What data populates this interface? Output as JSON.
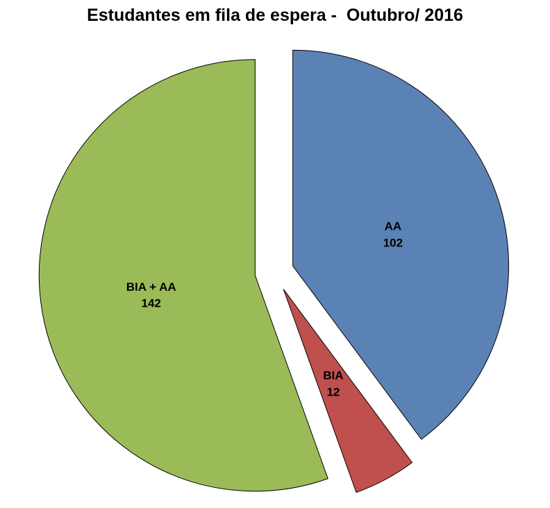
{
  "chart_data": {
    "type": "pie",
    "title": "Estudantes em fila de espera -  Outubro/ 2016",
    "slices": [
      {
        "label": "AA",
        "value": 102,
        "color": "#5B82B5"
      },
      {
        "label": "BIA",
        "value": 12,
        "color": "#C0504D"
      },
      {
        "label": "BIA + AA",
        "value": 142,
        "color": "#9BBB59"
      }
    ],
    "start_angle_deg": 0,
    "direction": "clockwise",
    "exploded": true,
    "outline_color": "#000000",
    "label_color": "#000000",
    "background": "#FFFFFF",
    "legend": "none"
  }
}
